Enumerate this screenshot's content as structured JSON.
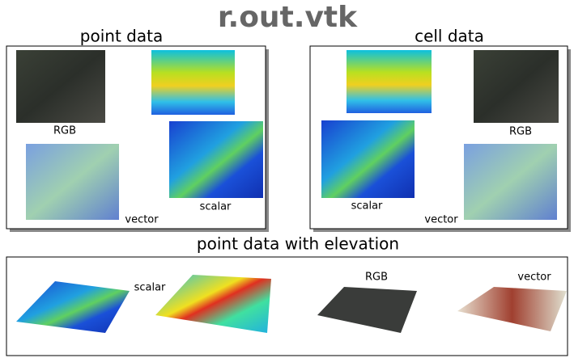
{
  "title": "r.out.vtk",
  "panels": [
    {
      "heading": "point data",
      "labels": {
        "rgb": "RGB",
        "scalar": "scalar",
        "vector": "vector"
      }
    },
    {
      "heading": "cell data",
      "labels": {
        "rgb": "RGB",
        "scalar": "scalar",
        "vector": "vector"
      }
    },
    {
      "heading": "point data with elevation",
      "labels": {
        "scalar": "scalar",
        "rgb": "RGB",
        "vector": "vector"
      }
    }
  ]
}
